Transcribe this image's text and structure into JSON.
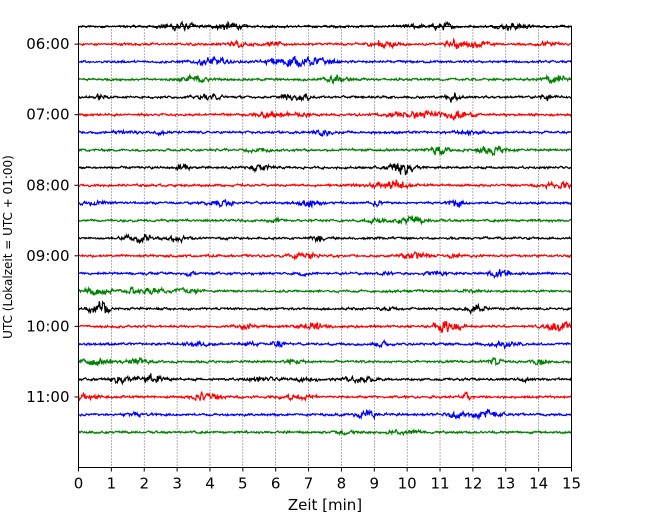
{
  "chart_data": {
    "type": "line",
    "title": "",
    "xlabel": "Zeit  [min]",
    "ylabel": "UTC (Lokalzeit = UTC + 01:00)",
    "xlim": [
      0,
      15
    ],
    "x_ticks": [
      "0",
      "1",
      "2",
      "3",
      "4",
      "5",
      "6",
      "7",
      "8",
      "9",
      "10",
      "11",
      "12",
      "13",
      "14",
      "15"
    ],
    "y_tick_labels": [
      "06:00",
      "07:00",
      "08:00",
      "09:00",
      "10:00",
      "11:00"
    ],
    "y_range_utc": [
      "05:45",
      "12:00"
    ],
    "rows_per_hour": 4,
    "row_start_times": [
      "05:45",
      "06:00",
      "06:15",
      "06:30",
      "06:45",
      "07:00",
      "07:15",
      "07:30",
      "07:45",
      "08:00",
      "08:15",
      "08:30",
      "08:45",
      "09:00",
      "09:15",
      "09:30",
      "09:45",
      "10:00",
      "10:15",
      "10:30",
      "10:45",
      "11:00",
      "11:15",
      "11:30"
    ],
    "trace_colors": [
      "#000000",
      "#ff0000",
      "#0000ff",
      "#008000"
    ],
    "grid": {
      "vertical_dotted": true,
      "horizontal": false
    },
    "legend": "none"
  }
}
